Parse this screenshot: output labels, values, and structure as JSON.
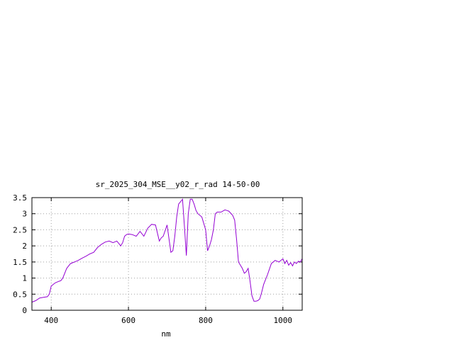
{
  "chart_data": {
    "type": "line",
    "title": "sr_2025_304_MSE__y02_r_rad 14-50-00",
    "xlabel": "nm",
    "ylabel": "",
    "xlim": [
      350,
      1050
    ],
    "ylim": [
      0,
      3.5
    ],
    "grid": true,
    "x_ticks": [
      400,
      600,
      800,
      1000
    ],
    "x_tick_labels": [
      "400",
      "600",
      "800",
      "1000"
    ],
    "y_ticks": [
      0,
      0.5,
      1,
      1.5,
      2,
      2.5,
      3,
      3.5
    ],
    "y_tick_labels": [
      "0",
      "0.5",
      "1",
      "1.5",
      "2",
      "2.5",
      "3",
      "3.5"
    ],
    "series": [
      {
        "color": "#9400d3",
        "x": [
          350,
          360,
          370,
          380,
          390,
          395,
          400,
          410,
          420,
          425,
          430,
          440,
          450,
          460,
          470,
          480,
          490,
          500,
          510,
          520,
          530,
          540,
          550,
          560,
          570,
          580,
          585,
          590,
          595,
          600,
          610,
          620,
          630,
          640,
          650,
          660,
          670,
          680,
          685,
          690,
          700,
          710,
          715,
          720,
          725,
          730,
          740,
          745,
          750,
          755,
          760,
          765,
          770,
          775,
          780,
          790,
          800,
          805,
          810,
          815,
          820,
          825,
          830,
          840,
          850,
          855,
          860,
          870,
          875,
          880,
          885,
          890,
          895,
          900,
          905,
          910,
          915,
          920,
          925,
          930,
          935,
          940,
          945,
          950,
          955,
          960,
          970,
          980,
          990,
          1000,
          1005,
          1010,
          1015,
          1020,
          1025,
          1030,
          1035,
          1040,
          1045,
          1050
        ],
        "y": [
          0.25,
          0.3,
          0.38,
          0.4,
          0.42,
          0.5,
          0.75,
          0.85,
          0.9,
          0.92,
          1.0,
          1.3,
          1.45,
          1.5,
          1.55,
          1.62,
          1.68,
          1.75,
          1.8,
          1.95,
          2.05,
          2.12,
          2.15,
          2.1,
          2.15,
          2.0,
          2.1,
          2.3,
          2.35,
          2.37,
          2.35,
          2.3,
          2.45,
          2.3,
          2.55,
          2.67,
          2.65,
          2.15,
          2.25,
          2.3,
          2.65,
          1.8,
          1.85,
          2.3,
          2.9,
          3.3,
          3.45,
          2.6,
          1.7,
          3.0,
          3.45,
          3.45,
          3.3,
          3.1,
          3.0,
          2.9,
          2.5,
          1.85,
          2.0,
          2.2,
          2.5,
          3.0,
          3.05,
          3.05,
          3.12,
          3.1,
          3.08,
          2.95,
          2.8,
          2.2,
          1.5,
          1.4,
          1.3,
          1.15,
          1.2,
          1.3,
          0.9,
          0.45,
          0.28,
          0.28,
          0.3,
          0.35,
          0.55,
          0.8,
          0.95,
          1.1,
          1.45,
          1.55,
          1.5,
          1.6,
          1.45,
          1.55,
          1.4,
          1.48,
          1.38,
          1.5,
          1.45,
          1.52,
          1.5,
          1.6
        ]
      }
    ]
  }
}
